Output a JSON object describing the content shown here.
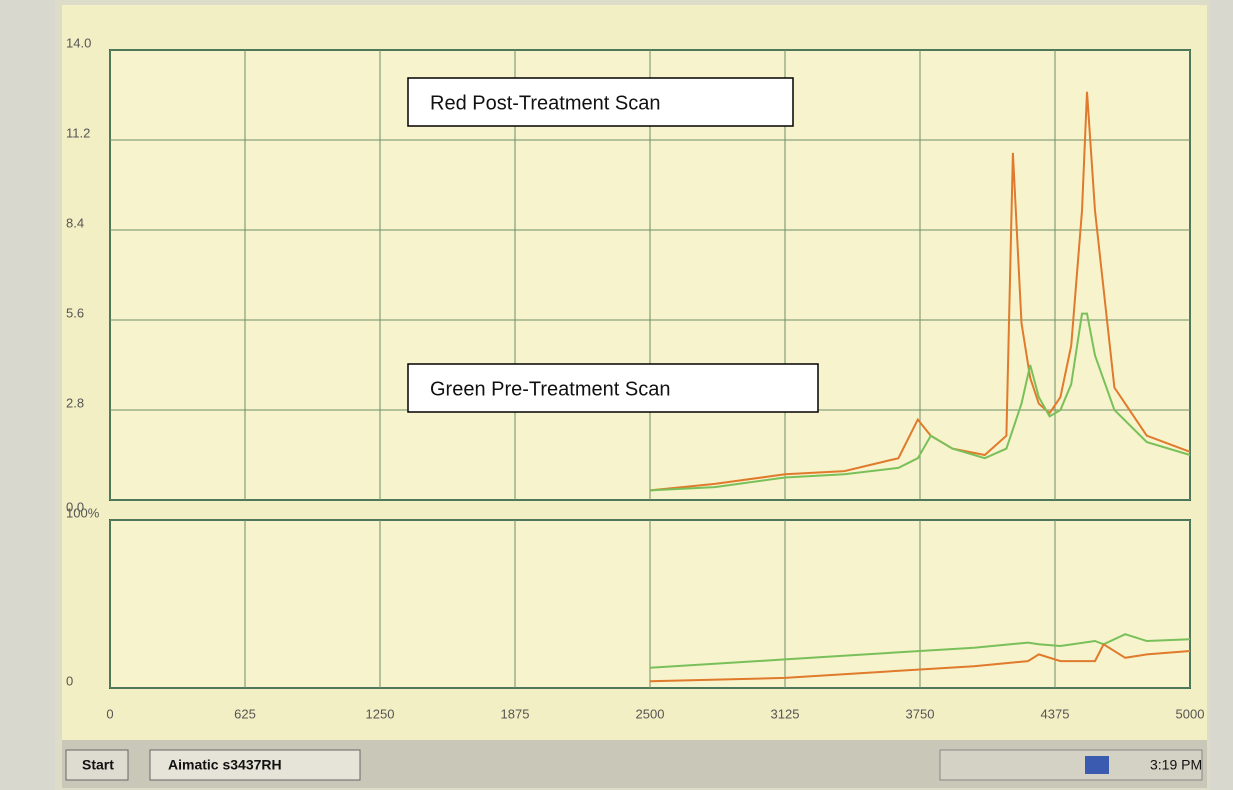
{
  "chart_data": [
    {
      "type": "line",
      "annotations": [
        "Red Post-Treatment Scan",
        "Green Pre-Treatment Scan"
      ],
      "x": [
        2500,
        2800,
        3125,
        3400,
        3650,
        3740,
        3800,
        3900,
        4050,
        4150,
        4180,
        4220,
        4260,
        4300,
        4350,
        4400,
        4450,
        4500,
        4523,
        4560,
        4650,
        4800,
        5000
      ],
      "series": [
        {
          "color": "#e07a2c",
          "values": [
            0.3,
            0.5,
            0.8,
            0.9,
            1.3,
            2.5,
            2.0,
            1.6,
            1.4,
            2.0,
            10.8,
            5.5,
            3.8,
            3.0,
            2.7,
            3.2,
            4.8,
            9.0,
            12.7,
            9.0,
            3.5,
            2.0,
            1.5
          ]
        },
        {
          "color": "#79c05a",
          "values": [
            0.3,
            0.4,
            0.7,
            0.8,
            1.0,
            1.3,
            2.0,
            1.6,
            1.3,
            1.6,
            2.2,
            3.0,
            4.2,
            3.2,
            2.6,
            2.8,
            3.6,
            5.8,
            5.8,
            4.5,
            2.8,
            1.8,
            1.4
          ]
        }
      ],
      "xlim": [
        0,
        5000
      ],
      "xticks": [
        0,
        625,
        1250,
        1875,
        2500,
        3125,
        3750,
        4375,
        5000
      ],
      "ylim": [
        0,
        14
      ],
      "yticks": [
        {
          "value": 0,
          "label": "0.0"
        },
        2.8,
        5.6,
        8.4,
        11.2,
        {
          "value": 14,
          "label": "14.0"
        }
      ],
      "grid": true
    },
    {
      "type": "line",
      "x": [
        2500,
        3125,
        3750,
        4000,
        4250,
        4300,
        4400,
        4560,
        4600,
        4700,
        4800,
        5000
      ],
      "series": [
        {
          "color": "#79c05a",
          "values": [
            12,
            17,
            22,
            24,
            27,
            26,
            25,
            28,
            26,
            32,
            28,
            29
          ]
        },
        {
          "color": "#e07a2c",
          "values": [
            4,
            6,
            11,
            13,
            16,
            20,
            16,
            16,
            26,
            18,
            20,
            22
          ]
        }
      ],
      "xlim": [
        0,
        5000
      ],
      "xticks": [
        0,
        625,
        1250,
        1875,
        2500,
        3125,
        3750,
        4375,
        5000
      ],
      "ylim": [
        0,
        100
      ],
      "yticks": [
        0,
        {
          "value": 100,
          "label": "100%"
        }
      ],
      "grid": true
    }
  ],
  "taskbar": {
    "start": "Start",
    "window": "Aimatic s3437RH",
    "clock": "3:19 PM"
  }
}
